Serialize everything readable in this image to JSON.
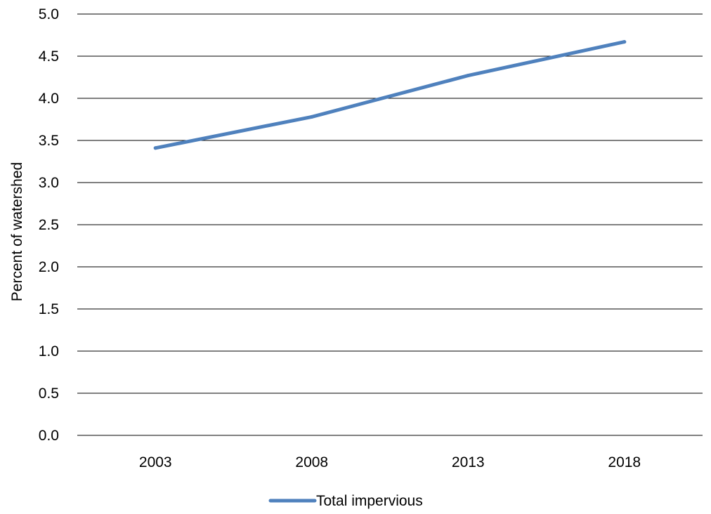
{
  "chart_data": {
    "type": "line",
    "title": "",
    "xlabel": "",
    "ylabel": "Percent of watershed",
    "categories": [
      "2003",
      "2008",
      "2013",
      "2018"
    ],
    "ylim": [
      0,
      5
    ],
    "yticks": [
      "0.0",
      "0.5",
      "1.0",
      "1.5",
      "2.0",
      "2.5",
      "3.0",
      "3.5",
      "4.0",
      "4.5",
      "5.0"
    ],
    "grid": true,
    "legend_position": "bottom",
    "series": [
      {
        "name": "Total impervious",
        "values": [
          3.41,
          3.78,
          4.27,
          4.67
        ],
        "color": "#4F81BD"
      }
    ]
  }
}
